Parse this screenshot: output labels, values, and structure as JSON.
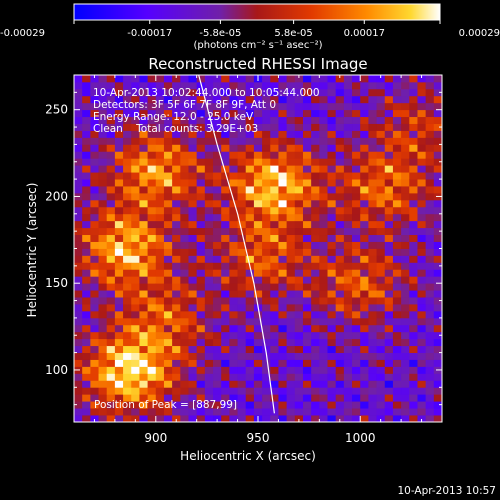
{
  "chart_data": {
    "type": "heatmap",
    "title": "Reconstructed RHESSI Image",
    "xlabel": "Heliocentric X (arcsec)",
    "ylabel": "Heliocentric Y (arcsec)",
    "xlim": [
      860,
      1040
    ],
    "ylim": [
      70,
      270
    ],
    "x_ticks": [
      900,
      950,
      1000
    ],
    "y_ticks": [
      100,
      150,
      200,
      250
    ],
    "colorbar": {
      "min": -0.00029,
      "max": 0.00029,
      "tick_values": [
        -0.00029,
        -0.00017,
        -5.8e-05,
        5.8e-05,
        0.00017,
        0.00029
      ],
      "tick_labels": [
        "-0.00029",
        "-0.00017",
        "-5.8e-05",
        "5.8e-05",
        "0.00017",
        "0.00029"
      ],
      "unit_label": "(photons cm⁻² s⁻¹ asec⁻²)"
    },
    "annotations": [
      "10-Apr-2013 10:02:44.000 to 10:05:44.000",
      "Detectors: 3F 5F 6F 7F 8F 9F, Att 0",
      "Energy Range: 12.0 - 25.0 keV",
      "Clean    Total counts: 3.29E+03"
    ],
    "peak_label": "Position of Peak = [887,99]",
    "sources": [
      {
        "x": 887,
        "y": 99,
        "amp": 1.0
      },
      {
        "x": 885,
        "y": 170,
        "amp": 0.85
      },
      {
        "x": 900,
        "y": 215,
        "amp": 0.75
      },
      {
        "x": 958,
        "y": 207,
        "amp": 0.9
      },
      {
        "x": 952,
        "y": 165,
        "amp": 0.55
      },
      {
        "x": 1012,
        "y": 205,
        "amp": 0.6
      },
      {
        "x": 1000,
        "y": 150,
        "amp": 0.55
      },
      {
        "x": 1028,
        "y": 240,
        "amp": 0.4
      },
      {
        "x": 905,
        "y": 130,
        "amp": 0.5
      }
    ],
    "limb_curve": [
      [
        921,
        270
      ],
      [
        930,
        230
      ],
      [
        940,
        190
      ],
      [
        948,
        150
      ],
      [
        954,
        110
      ],
      [
        958,
        75
      ]
    ]
  },
  "footer_timestamp": "10-Apr-2013 10:57"
}
